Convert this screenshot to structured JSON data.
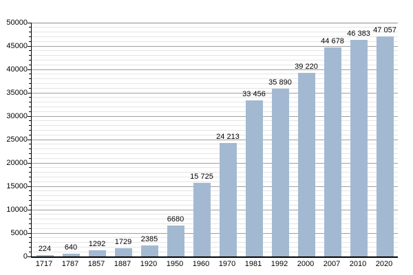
{
  "chart_data": {
    "type": "bar",
    "title": "",
    "xlabel": "",
    "ylabel": "",
    "categories": [
      "1717",
      "1787",
      "1857",
      "1887",
      "1920",
      "1950",
      "1960",
      "1970",
      "1981",
      "1992",
      "2000",
      "2007",
      "2010",
      "2020"
    ],
    "values": [
      224,
      640,
      1292,
      1729,
      2385,
      6680,
      15725,
      24213,
      33456,
      35890,
      39220,
      44678,
      46383,
      47057
    ],
    "value_labels": [
      "224",
      "640",
      "1292",
      "1729",
      "2385",
      "6680",
      "15 725",
      "24 213",
      "33 456",
      "35 890",
      "39 220",
      "44 678",
      "46 383",
      "47 057"
    ],
    "ylim": [
      0,
      50000
    ],
    "y_major_step": 5000,
    "y_minor_step": 1000,
    "y_tick_labels": [
      "0",
      "5000",
      "10000",
      "15000",
      "20000",
      "25000",
      "30000",
      "35000",
      "40000",
      "45000",
      "50000"
    ],
    "grid": "on",
    "legend": "none",
    "colors": {
      "bar_fill": "#a3b9d2",
      "major_gridline": "#9e9e9e",
      "top_gridline": "#8c8c8c",
      "minor_gridline": "#e4e4e4",
      "axis": "#000000",
      "text": "#000000",
      "background": "#ffffff"
    }
  }
}
